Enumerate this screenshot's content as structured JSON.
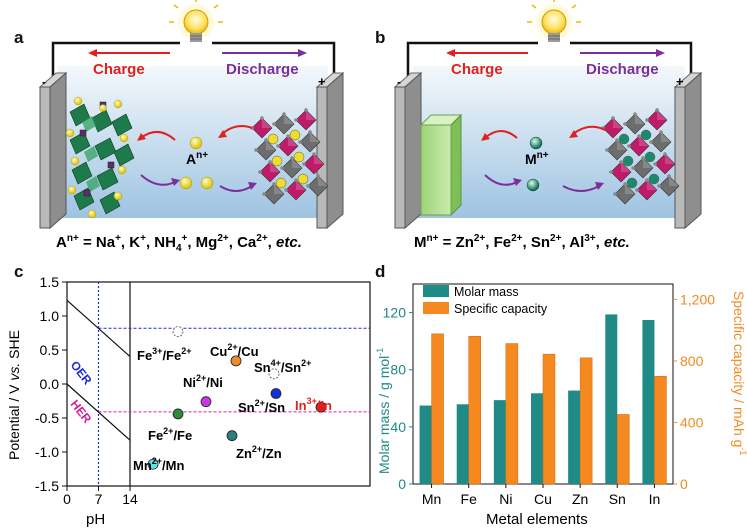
{
  "panels": {
    "a": {
      "letter": "a",
      "charge_label": "Charge",
      "discharge_label": "Discharge",
      "minus": "-",
      "plus": "+",
      "ion_label": "A",
      "ion_sup": "n+",
      "caption_parts": [
        {
          "t": "A",
          "s": ""
        },
        {
          "t": "",
          "s": "n+"
        },
        {
          "t": " = Na",
          "s": ""
        },
        {
          "t": "",
          "s": "+"
        },
        {
          "t": ", K",
          "s": ""
        },
        {
          "t": "",
          "s": "+"
        },
        {
          "t": ", NH",
          "s": ""
        },
        {
          "t": "",
          "sub": "4"
        },
        {
          "t": "",
          "s": "+"
        },
        {
          "t": ", Mg",
          "s": ""
        },
        {
          "t": "",
          "s": "2+"
        },
        {
          "t": ", Ca",
          "s": ""
        },
        {
          "t": "",
          "s": "2+"
        },
        {
          "t": ", ",
          "s": ""
        },
        {
          "t": "etc.",
          "s": "",
          "i": true
        }
      ]
    },
    "b": {
      "letter": "b",
      "charge_label": "Charge",
      "discharge_label": "Discharge",
      "minus": "-",
      "plus": "+",
      "ion_label": "M",
      "ion_sup": "n+",
      "caption_parts": [
        {
          "t": "M",
          "s": ""
        },
        {
          "t": "",
          "s": "n+"
        },
        {
          "t": " = Zn",
          "s": ""
        },
        {
          "t": "",
          "s": "2+"
        },
        {
          "t": ", Fe",
          "s": ""
        },
        {
          "t": "",
          "s": "2+"
        },
        {
          "t": ", Sn",
          "s": ""
        },
        {
          "t": "",
          "s": "2+"
        },
        {
          "t": ", Al",
          "s": ""
        },
        {
          "t": "",
          "s": "3+"
        },
        {
          "t": ", ",
          "s": ""
        },
        {
          "t": "etc.",
          "s": "",
          "i": true
        }
      ]
    },
    "c": {
      "letter": "c",
      "ylabel": "Potential / V vs. SHE",
      "xlabel": "pH",
      "x_ticks": [
        "0",
        "7",
        "14"
      ],
      "y_ticks": [
        "1.5",
        "1.0",
        "0.5",
        "0.0",
        "-0.5",
        "-1.0",
        "-1.5"
      ],
      "oer_label": "OER",
      "her_label": "HER",
      "couples": [
        {
          "label": "Fe3+/Fe2+",
          "main1": "Fe",
          "sup1": "3+",
          "main2": "/Fe",
          "sup2": "2+",
          "potential": 0.77,
          "color": "#ffffff",
          "dashed": true,
          "label_color": "#000"
        },
        {
          "label": "Cu2+/Cu",
          "main1": "Cu",
          "sup1": "2+",
          "main2": "/Cu",
          "sup2": "",
          "potential": 0.34,
          "color": "#f08a24",
          "dashed": false,
          "label_color": "#000"
        },
        {
          "label": "Sn4+/Sn2+",
          "main1": "Sn",
          "sup1": "4+",
          "main2": "/Sn",
          "sup2": "2+",
          "potential": 0.15,
          "color": "#ffffff",
          "dashed": true,
          "label_color": "#000"
        },
        {
          "label": "Sn2+/Sn",
          "main1": "Sn",
          "sup1": "2+",
          "main2": "/Sn",
          "sup2": "",
          "potential": -0.14,
          "color": "#1630d8",
          "dashed": false,
          "label_color": "#000"
        },
        {
          "label": "Ni2+/Ni",
          "main1": "Ni",
          "sup1": "2+",
          "main2": "/Ni",
          "sup2": "",
          "potential": -0.26,
          "color": "#c639e0",
          "dashed": false,
          "label_color": "#000"
        },
        {
          "label": "In3+/In",
          "main1": "In",
          "sup1": "3+",
          "main2": "/In",
          "sup2": "",
          "potential": -0.34,
          "color": "#e0211f",
          "dashed": false,
          "label_color": "#e0211f"
        },
        {
          "label": "Fe2+/Fe",
          "main1": "Fe",
          "sup1": "2+",
          "main2": "/Fe",
          "sup2": "",
          "potential": -0.44,
          "color": "#2d8c3a",
          "dashed": false,
          "label_color": "#000"
        },
        {
          "label": "Zn2+/Zn",
          "main1": "Zn",
          "sup1": "2+",
          "main2": "/Zn",
          "sup2": "",
          "potential": -0.76,
          "color": "#2a7f7a",
          "dashed": false,
          "label_color": "#000"
        },
        {
          "label": "Mn2+/Mn",
          "main1": "Mn",
          "sup1": "2+",
          "main2": "/Mn",
          "sup2": "",
          "potential": -1.18,
          "color": "#5fe3ee",
          "dashed": false,
          "label_color": "#000"
        }
      ]
    },
    "d": {
      "letter": "d",
      "xlabel": "Metal elements",
      "ylabel_left": "Molar mass / g mol",
      "ylabel_left_sup": "-1",
      "ylabel_right": "Specific capacity / mAh g",
      "ylabel_right_sup": "-1",
      "left_ticks": [
        "0",
        "40",
        "80",
        "120"
      ],
      "right_ticks": [
        "0",
        "400",
        "800",
        "1,200"
      ]
    }
  },
  "chart_data": {
    "type": "bar",
    "categories": [
      "Mn",
      "Fe",
      "Ni",
      "Cu",
      "Zn",
      "Sn",
      "In"
    ],
    "series": [
      {
        "name": "Molar mass",
        "axis": "left",
        "color": "#1f8a86",
        "values": [
          54.9,
          55.8,
          58.7,
          63.5,
          65.4,
          118.7,
          114.8
        ]
      },
      {
        "name": "Specific capacity",
        "axis": "right",
        "color": "#f5891f",
        "values": [
          976,
          960,
          913,
          844,
          820,
          452,
          700
        ]
      }
    ],
    "xlabel": "Metal elements",
    "ylabel": "Molar mass / g mol-1",
    "ylabel_right": "Specific capacity / mAh g-1",
    "ylim": [
      0,
      140
    ],
    "ylim_right": [
      0,
      1300
    ],
    "legend": "top-left"
  }
}
